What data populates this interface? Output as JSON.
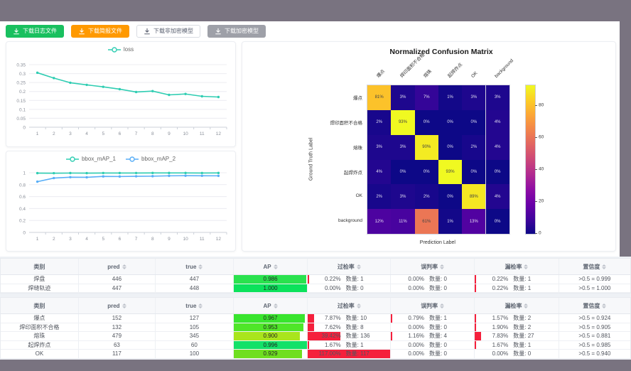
{
  "toolbar": {
    "buttons": [
      {
        "label": "下载日志文件",
        "style": "green"
      },
      {
        "label": "下载简报文件",
        "style": "orange"
      },
      {
        "label": "下载非加密模型",
        "style": "plain"
      },
      {
        "label": "下载加密模型",
        "style": "gray"
      }
    ]
  },
  "colors": {
    "teal_line": "#2fcdb2",
    "blue_line": "#58aef7",
    "rate_bar_red": "#f5203c",
    "backdrop_gray": "#797380"
  },
  "chart_data": [
    {
      "type": "line",
      "title": "loss",
      "legend": [
        "loss"
      ],
      "legend_position": "top",
      "categories": [
        "1",
        "2",
        "3",
        "4",
        "5",
        "6",
        "7",
        "8",
        "9",
        "10",
        "11",
        "12"
      ],
      "series": [
        {
          "name": "loss",
          "color": "#2fcdb2",
          "values": [
            0.305,
            0.275,
            0.249,
            0.237,
            0.226,
            0.213,
            0.197,
            0.202,
            0.181,
            0.186,
            0.173,
            0.169
          ]
        }
      ],
      "y_ticks": [
        "0",
        "0.05",
        "0.1",
        "0.15",
        "0.2",
        "0.25",
        "0.3",
        "0.35"
      ],
      "ylim": [
        0,
        0.35
      ],
      "grid": true
    },
    {
      "type": "line",
      "title": "bbox_mAP",
      "legend": [
        "bbox_mAP_1",
        "bbox_mAP_2"
      ],
      "legend_position": "top",
      "categories": [
        "1",
        "2",
        "3",
        "4",
        "5",
        "6",
        "7",
        "8",
        "9",
        "10",
        "11",
        "12"
      ],
      "series": [
        {
          "name": "bbox_mAP_1",
          "color": "#2fcdb2",
          "values": [
            0.993,
            0.992,
            0.994,
            0.993,
            0.995,
            0.995,
            0.995,
            0.996,
            0.996,
            0.996,
            0.995,
            0.996
          ]
        },
        {
          "name": "bbox_mAP_2",
          "color": "#58aef7",
          "values": [
            0.85,
            0.91,
            0.925,
            0.923,
            0.938,
            0.936,
            0.94,
            0.942,
            0.948,
            0.95,
            0.949,
            0.948
          ]
        }
      ],
      "y_ticks": [
        "0",
        "0.2",
        "0.4",
        "0.6",
        "0.8",
        "1"
      ],
      "ylim": [
        0,
        1
      ],
      "grid": true
    },
    {
      "type": "heatmap",
      "title": "Normalized Confusion Matrix",
      "xlabel": "Prediction Label",
      "ylabel": "Ground Truth Label",
      "categories": [
        "爆点",
        "焊印面积不合格",
        "熔珠",
        "起焊炸点",
        "OK",
        "background"
      ],
      "values": [
        [
          81,
          3,
          7,
          1,
          3,
          3
        ],
        [
          2,
          93,
          0,
          0,
          0,
          4
        ],
        [
          3,
          3,
          90,
          0,
          2,
          4
        ],
        [
          4,
          0,
          0,
          93,
          0,
          0
        ],
        [
          2,
          3,
          2,
          0,
          89,
          4
        ],
        [
          12,
          11,
          61,
          1,
          13,
          0
        ]
      ],
      "cell_suffix": "%",
      "vmax": 93,
      "colorbar_ticks": [
        80,
        60,
        40,
        20,
        0
      ],
      "colormap": "plasma",
      "legend_position": "right-colorbar"
    }
  ],
  "tables": [
    {
      "headers": [
        {
          "key": "category",
          "label": "类别",
          "sortable": false
        },
        {
          "key": "pred",
          "label": "pred",
          "sortable": true
        },
        {
          "key": "true",
          "label": "true",
          "sortable": true
        },
        {
          "key": "ap",
          "label": "AP",
          "sortable": true
        },
        {
          "key": "overdetect-rate",
          "label": "过检率",
          "sortable": true
        },
        {
          "key": "misjudge-rate",
          "label": "误判率",
          "sortable": true
        },
        {
          "key": "miss-rate",
          "label": "漏检率",
          "sortable": true
        },
        {
          "key": "confidence",
          "label": "置信度",
          "sortable": true
        }
      ],
      "rows": [
        {
          "category": "焊盘",
          "pred": "446",
          "true": "447",
          "ap": {
            "value": 0.986,
            "label": "0.986",
            "color": "#2ae24e"
          },
          "rates": [
            {
              "pct": "0.22%",
              "count": "数量: 1",
              "bar": 0.22
            },
            {
              "pct": "0.00%",
              "count": "数量: 0",
              "bar": 0
            },
            {
              "pct": "0.22%",
              "count": "数量: 1",
              "bar": 0.22
            }
          ],
          "confidence": ">0.5 = 0.999"
        },
        {
          "category": "焊缝轨迹",
          "pred": "447",
          "true": "448",
          "ap": {
            "value": 1.0,
            "label": "1.000",
            "color": "#0be25b"
          },
          "rates": [
            {
              "pct": "0.00%",
              "count": "数量: 0",
              "bar": 0
            },
            {
              "pct": "0.00%",
              "count": "数量: 0",
              "bar": 0
            },
            {
              "pct": "0.22%",
              "count": "数量: 1",
              "bar": 0.22
            }
          ],
          "confidence": ">0.5 = 1.000"
        }
      ]
    },
    {
      "headers": [
        {
          "key": "category",
          "label": "类别",
          "sortable": false
        },
        {
          "key": "pred",
          "label": "pred",
          "sortable": true
        },
        {
          "key": "true",
          "label": "true",
          "sortable": true
        },
        {
          "key": "ap",
          "label": "AP",
          "sortable": true
        },
        {
          "key": "overdetect-rate",
          "label": "过检率",
          "sortable": true
        },
        {
          "key": "misjudge-rate",
          "label": "误判率",
          "sortable": true
        },
        {
          "key": "miss-rate",
          "label": "漏检率",
          "sortable": true
        },
        {
          "key": "confidence",
          "label": "置信度",
          "sortable": true
        }
      ],
      "rows": [
        {
          "category": "爆点",
          "pred": "152",
          "true": "127",
          "ap": {
            "value": 0.967,
            "label": "0.967",
            "color": "#39e52e"
          },
          "rates": [
            {
              "pct": "7.87%",
              "count": "数量: 10",
              "bar": 7.87
            },
            {
              "pct": "0.79%",
              "count": "数量: 1",
              "bar": 0.79
            },
            {
              "pct": "1.57%",
              "count": "数量: 2",
              "bar": 1.57
            }
          ],
          "confidence": ">0.5 = 0.924"
        },
        {
          "category": "焊印面积不合格",
          "pred": "132",
          "true": "105",
          "ap": {
            "value": 0.953,
            "label": "0.953",
            "color": "#4fe628"
          },
          "rates": [
            {
              "pct": "7.62%",
              "count": "数量: 8",
              "bar": 7.62
            },
            {
              "pct": "0.00%",
              "count": "数量: 0",
              "bar": 0
            },
            {
              "pct": "1.90%",
              "count": "数量: 2",
              "bar": 1.9
            }
          ],
          "confidence": ">0.5 = 0.905"
        },
        {
          "category": "熔珠",
          "pred": "479",
          "true": "345",
          "ap": {
            "value": 0.9,
            "label": "0.900",
            "color": "#a9e51c"
          },
          "rates": [
            {
              "pct": "39.42%",
              "count": "数量: 136",
              "bar": 39.42
            },
            {
              "pct": "1.16%",
              "count": "数量: 4",
              "bar": 1.16
            },
            {
              "pct": "7.83%",
              "count": "数量: 27",
              "bar": 7.83
            }
          ],
          "confidence": ">0.5 = 0.881"
        },
        {
          "category": "起焊炸点",
          "pred": "63",
          "true": "60",
          "ap": {
            "value": 0.996,
            "label": "0.996",
            "color": "#13e168"
          },
          "rates": [
            {
              "pct": "1.67%",
              "count": "数量: 1",
              "bar": 1.67
            },
            {
              "pct": "0.00%",
              "count": "数量: 0",
              "bar": 0
            },
            {
              "pct": "1.67%",
              "count": "数量: 1",
              "bar": 1.67
            }
          ],
          "confidence": ">0.5 = 0.985"
        },
        {
          "category": "OK",
          "pred": "117",
          "true": "100",
          "ap": {
            "value": 0.929,
            "label": "0.929",
            "color": "#6fdf20"
          },
          "rates": [
            {
              "pct": "117.00%",
              "count": "数量: 117",
              "bar": 117
            },
            {
              "pct": "0.00%",
              "count": "数量: 0",
              "bar": 0
            },
            {
              "pct": "0.00%",
              "count": "数量: 0",
              "bar": 0
            }
          ],
          "confidence": ">0.5 = 0.940"
        }
      ]
    }
  ]
}
